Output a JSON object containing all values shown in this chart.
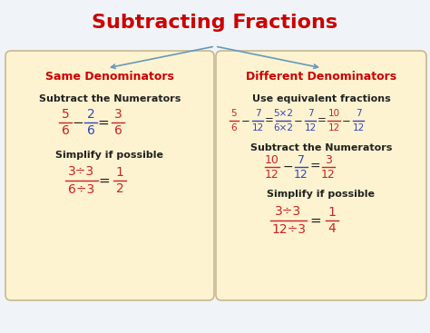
{
  "title": "Subtracting Fractions",
  "title_color": "#cc0000",
  "title_fontsize": 16,
  "bg_color": "#f0f4f8",
  "box_color": "#fdf3d0",
  "box_edge_color": "#c8b890",
  "left_header": "Same Denominators",
  "right_header": "Different Denominators",
  "header_color": "#cc0000",
  "body_color": "#222222",
  "blue_color": "#3344bb",
  "red_color": "#cc2222",
  "arrow_color": "#6699bb",
  "fig_w": 4.74,
  "fig_h": 3.67,
  "dpi": 100
}
